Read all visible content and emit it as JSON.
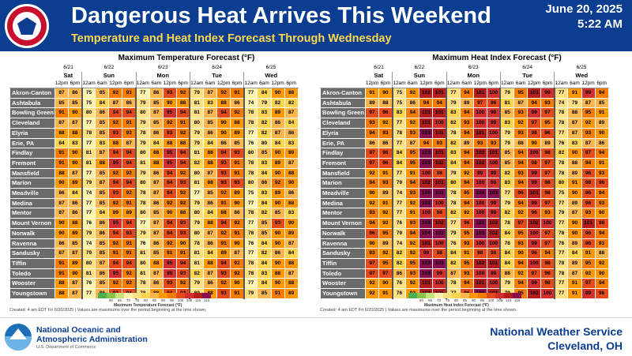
{
  "header": {
    "title": "Dangerous Heat Arrives This Weekend",
    "subtitle": "Temperature and Heat Index Forecast Through Wednesday",
    "date": "June 20, 2025",
    "time": "5:22 AM",
    "logo_text": "NATIONAL WEATHER SERVICE",
    "colors": {
      "header_bg": "#0b3d91",
      "title": "#ffffff",
      "subtitle": "#ffd84d"
    }
  },
  "footer": {
    "noaa_line1": "National Oceanic and",
    "noaa_line2": "Atmospheric Administration",
    "department": "U.S. Department of Commerce",
    "nws_name": "National Weather Service",
    "nws_location": "Cleveland, OH"
  },
  "colors": {
    "scale": [
      "#4caf50",
      "#8bc34a",
      "#c6e27a",
      "#fff3b0",
      "#ffe082",
      "#ffd54f",
      "#ffb74d",
      "#ff9800",
      "#f57c00",
      "#e64a19",
      "#d32f2f",
      "#b71c1c",
      "#880e4f"
    ],
    "station_bg": "#6b6b6b"
  },
  "days": [
    {
      "date": "6/21",
      "day": "Sat",
      "hours": [
        "12pm",
        "6pm"
      ]
    },
    {
      "date": "6/22",
      "day": "Sun",
      "hours": [
        "12am",
        "6am",
        "12pm",
        "6pm"
      ]
    },
    {
      "date": "6/23",
      "day": "Mon",
      "hours": [
        "12am",
        "6am",
        "12pm",
        "6pm"
      ]
    },
    {
      "date": "6/24",
      "day": "Tue",
      "hours": [
        "12am",
        "6am",
        "12pm",
        "6pm"
      ]
    },
    {
      "date": "6/25",
      "day": "Wed",
      "hours": [
        "12am",
        "6am",
        "12pm",
        "6pm"
      ]
    }
  ],
  "stations": [
    "Akron-Canton",
    "Ashtabula",
    "Bowling Green",
    "Cleveland",
    "Elyria",
    "Erie, PA",
    "Findlay",
    "Fremont",
    "Mansfield",
    "Marion",
    "Meadville",
    "Medina",
    "Mentor",
    "Mount Vernon",
    "Norwalk",
    "Ravenna",
    "Sandusky",
    "Tiffin",
    "Toledo",
    "Wooster",
    "Youngstown"
  ],
  "temperature": {
    "title": "Maximum Temperature Forecast (°F)",
    "legend_title": "Maximum Temperature Forecast (°F)",
    "legend_labels": [
      "",
      "80",
      "65",
      "70",
      "75",
      "80",
      "85",
      "90",
      "95",
      "100",
      "105",
      "110",
      "115"
    ],
    "created": "Created: 4 am EDT Fri 6/20/2025  |  Values are maximums over the period beginning at the time shown.",
    "values": [
      [
        87,
        86,
        75,
        85,
        92,
        91,
        77,
        86,
        93,
        92,
        79,
        87,
        92,
        91,
        77,
        84,
        90,
        88
      ],
      [
        85,
        85,
        75,
        84,
        87,
        86,
        79,
        85,
        90,
        88,
        81,
        83,
        88,
        86,
        74,
        79,
        82,
        82
      ],
      [
        91,
        90,
        80,
        86,
        94,
        94,
        80,
        87,
        95,
        94,
        81,
        87,
        94,
        92,
        78,
        83,
        89,
        87
      ],
      [
        87,
        87,
        77,
        85,
        92,
        91,
        79,
        85,
        92,
        91,
        80,
        85,
        90,
        88,
        78,
        82,
        86,
        84
      ],
      [
        88,
        88,
        78,
        85,
        93,
        92,
        78,
        86,
        93,
        92,
        79,
        86,
        90,
        89,
        77,
        82,
        87,
        86
      ],
      [
        84,
        83,
        77,
        83,
        88,
        87,
        79,
        84,
        88,
        88,
        79,
        84,
        86,
        85,
        76,
        80,
        84,
        83
      ],
      [
        91,
        90,
        81,
        87,
        94,
        94,
        80,
        88,
        95,
        94,
        81,
        88,
        94,
        93,
        80,
        85,
        90,
        89
      ],
      [
        91,
        90,
        81,
        88,
        95,
        94,
        81,
        88,
        95,
        94,
        82,
        88,
        93,
        91,
        78,
        83,
        89,
        87
      ],
      [
        88,
        87,
        77,
        85,
        92,
        92,
        79,
        86,
        94,
        92,
        80,
        87,
        93,
        91,
        78,
        84,
        90,
        88
      ],
      [
        90,
        89,
        79,
        87,
        94,
        94,
        80,
        87,
        94,
        93,
        81,
        88,
        93,
        93,
        80,
        86,
        92,
        90
      ],
      [
        86,
        84,
        74,
        85,
        93,
        92,
        78,
        87,
        94,
        92,
        77,
        85,
        92,
        89,
        75,
        83,
        89,
        86
      ],
      [
        87,
        86,
        77,
        85,
        92,
        91,
        78,
        86,
        92,
        92,
        79,
        86,
        91,
        90,
        77,
        84,
        90,
        88
      ],
      [
        87,
        86,
        77,
        84,
        89,
        89,
        80,
        85,
        90,
        88,
        80,
        84,
        88,
        86,
        78,
        82,
        85,
        83
      ],
      [
        90,
        88,
        76,
        86,
        95,
        94,
        77,
        87,
        94,
        93,
        79,
        88,
        94,
        92,
        77,
        85,
        93,
        90
      ],
      [
        90,
        89,
        79,
        86,
        94,
        93,
        79,
        87,
        94,
        93,
        80,
        87,
        92,
        91,
        78,
        85,
        90,
        89
      ],
      [
        86,
        85,
        74,
        85,
        92,
        91,
        76,
        86,
        92,
        90,
        78,
        86,
        91,
        90,
        76,
        84,
        90,
        87
      ],
      [
        87,
        87,
        79,
        85,
        91,
        91,
        81,
        85,
        91,
        91,
        81,
        84,
        89,
        87,
        77,
        82,
        86,
        84
      ],
      [
        91,
        89,
        80,
        87,
        94,
        94,
        80,
        88,
        95,
        94,
        81,
        88,
        94,
        92,
        78,
        84,
        90,
        88
      ],
      [
        91,
        90,
        81,
        86,
        95,
        92,
        81,
        87,
        95,
        93,
        82,
        87,
        93,
        92,
        78,
        83,
        88,
        87
      ],
      [
        88,
        87,
        76,
        85,
        92,
        92,
        78,
        86,
        93,
        92,
        79,
        86,
        92,
        90,
        77,
        84,
        90,
        88
      ],
      [
        88,
        87,
        77,
        86,
        93,
        94,
        78,
        88,
        94,
        93,
        80,
        88,
        93,
        91,
        79,
        85,
        91,
        89
      ]
    ]
  },
  "heat_index": {
    "title": "Maximum Heat Index Forecast (°F)",
    "legend_title": "Maximum Heat Index Forecast (°F)",
    "legend_labels": [
      "",
      "80",
      "65",
      "70",
      "75",
      "80",
      "85",
      "90",
      "95",
      "100",
      "105",
      "110",
      "115"
    ],
    "created": "Created: 4 am EDT Fri 6/20/2025  |  Values are maximums over the period beginning at the time shown.",
    "values": [
      [
        91,
        90,
        75,
        92,
        102,
        101,
        77,
        94,
        101,
        100,
        79,
        95,
        101,
        99,
        77,
        91,
        99,
        94
      ],
      [
        89,
        88,
        75,
        86,
        94,
        94,
        79,
        89,
        97,
        96,
        81,
        87,
        94,
        93,
        74,
        79,
        87,
        85
      ],
      [
        97,
        96,
        83,
        94,
        101,
        101,
        83,
        94,
        100,
        99,
        85,
        93,
        99,
        97,
        78,
        88,
        95,
        91
      ],
      [
        93,
        92,
        77,
        92,
        101,
        100,
        82,
        93,
        100,
        99,
        83,
        92,
        97,
        95,
        78,
        87,
        92,
        89
      ],
      [
        94,
        93,
        78,
        93,
        103,
        101,
        78,
        94,
        101,
        100,
        79,
        93,
        98,
        96,
        77,
        87,
        93,
        90
      ],
      [
        86,
        86,
        77,
        87,
        94,
        93,
        82,
        89,
        93,
        93,
        79,
        88,
        90,
        89,
        76,
        83,
        87,
        86
      ],
      [
        97,
        96,
        84,
        95,
        103,
        101,
        83,
        94,
        102,
        101,
        85,
        94,
        100,
        98,
        82,
        90,
        97,
        94
      ],
      [
        97,
        96,
        84,
        95,
        103,
        102,
        84,
        94,
        102,
        100,
        85,
        94,
        98,
        97,
        78,
        88,
        94,
        91
      ],
      [
        92,
        91,
        77,
        91,
        100,
        98,
        79,
        92,
        99,
        99,
        82,
        93,
        99,
        97,
        78,
        89,
        96,
        93
      ],
      [
        94,
        93,
        79,
        94,
        102,
        101,
        80,
        94,
        100,
        99,
        83,
        94,
        99,
        98,
        80,
        91,
        98,
        96
      ],
      [
        90,
        89,
        74,
        93,
        105,
        103,
        78,
        95,
        104,
        103,
        77,
        96,
        101,
        98,
        75,
        90,
        96,
        94
      ],
      [
        92,
        91,
        77,
        92,
        103,
        100,
        78,
        94,
        100,
        99,
        79,
        94,
        99,
        97,
        77,
        89,
        96,
        93
      ],
      [
        93,
        92,
        77,
        91,
        100,
        98,
        82,
        92,
        100,
        99,
        82,
        92,
        96,
        93,
        79,
        87,
        93,
        90
      ],
      [
        94,
        92,
        76,
        93,
        103,
        102,
        77,
        96,
        103,
        102,
        78,
        97,
        102,
        100,
        77,
        90,
        101,
        98
      ],
      [
        96,
        95,
        79,
        94,
        104,
        103,
        79,
        95,
        103,
        102,
        84,
        95,
        100,
        97,
        78,
        90,
        96,
        94
      ],
      [
        90,
        89,
        74,
        92,
        101,
        100,
        76,
        93,
        100,
        100,
        78,
        93,
        99,
        97,
        76,
        89,
        96,
        93
      ],
      [
        93,
        92,
        82,
        92,
        99,
        98,
        84,
        91,
        98,
        98,
        84,
        90,
        96,
        94,
        77,
        84,
        91,
        88
      ],
      [
        97,
        95,
        82,
        95,
        103,
        103,
        82,
        95,
        102,
        101,
        84,
        94,
        100,
        98,
        78,
        89,
        95,
        92
      ],
      [
        97,
        97,
        86,
        93,
        103,
        99,
        87,
        93,
        100,
        99,
        88,
        92,
        97,
        96,
        78,
        87,
        92,
        90
      ],
      [
        92,
        90,
        76,
        92,
        101,
        100,
        78,
        94,
        101,
        100,
        79,
        94,
        99,
        98,
        77,
        91,
        97,
        94
      ],
      [
        92,
        91,
        76,
        92,
        102,
        101,
        77,
        96,
        103,
        102,
        79,
        95,
        102,
        100,
        77,
        91,
        99,
        96
      ]
    ]
  }
}
